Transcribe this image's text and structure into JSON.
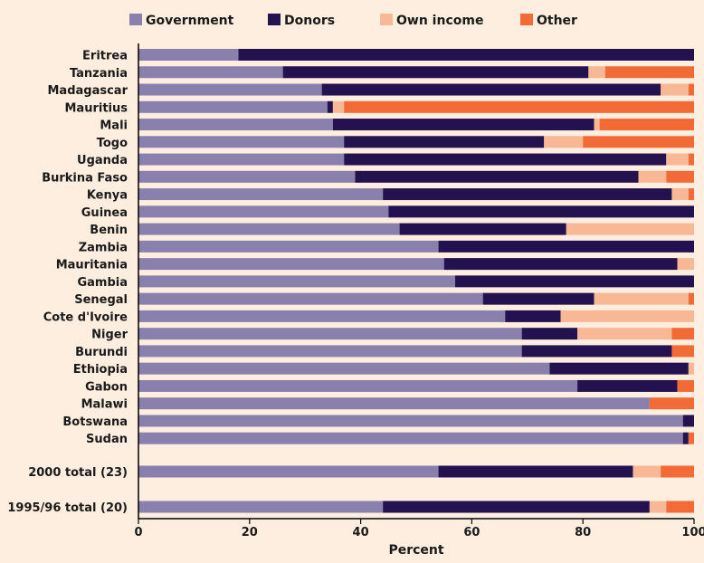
{
  "chart_data": {
    "type": "bar",
    "orientation": "horizontal",
    "stacked": true,
    "xlabel": "Percent",
    "ylabel": "",
    "xlim": [
      0,
      100
    ],
    "xticks": [
      0,
      20,
      40,
      60,
      80,
      100
    ],
    "legend_position": "top",
    "grid": false,
    "categories": [
      "Eritrea",
      "Tanzania",
      "Madagascar",
      "Mauritius",
      "Mali",
      "Togo",
      "Uganda",
      "Burkina Faso",
      "Kenya",
      "Guinea",
      "Benin",
      "Zambia",
      "Mauritania",
      "Gambia",
      "Senegal",
      "Cote d'Ivoire",
      "Niger",
      "Burundi",
      "Ethiopia",
      "Gabon",
      "Malawi",
      "Botswana",
      "Sudan",
      "2000 total (23)",
      "1995/96 total (20)"
    ],
    "series": [
      {
        "name": "Government",
        "color": "#8a80ad",
        "values": [
          18,
          26,
          33,
          34,
          35,
          37,
          37,
          39,
          44,
          45,
          47,
          54,
          55,
          57,
          62,
          66,
          69,
          69,
          74,
          79,
          92,
          98,
          98,
          54,
          44
        ]
      },
      {
        "name": "Donors",
        "color": "#24114f",
        "values": [
          82,
          55,
          61,
          1,
          47,
          36,
          58,
          51,
          52,
          55,
          30,
          46,
          42,
          43,
          20,
          10,
          10,
          27,
          25,
          18,
          0,
          2,
          1,
          35,
          48
        ]
      },
      {
        "name": "Own income",
        "color": "#f8b896",
        "values": [
          0,
          3,
          5,
          2,
          1,
          7,
          4,
          5,
          3,
          0,
          23,
          0,
          3,
          0,
          17,
          24,
          17,
          0,
          1,
          0,
          0,
          0,
          0,
          5,
          3
        ]
      },
      {
        "name": "Other",
        "color": "#f26b36",
        "values": [
          0,
          16,
          1,
          63,
          17,
          20,
          1,
          5,
          1,
          0,
          0,
          0,
          0,
          0,
          1,
          0,
          4,
          4,
          0,
          3,
          8,
          0,
          1,
          6,
          5
        ]
      }
    ]
  }
}
